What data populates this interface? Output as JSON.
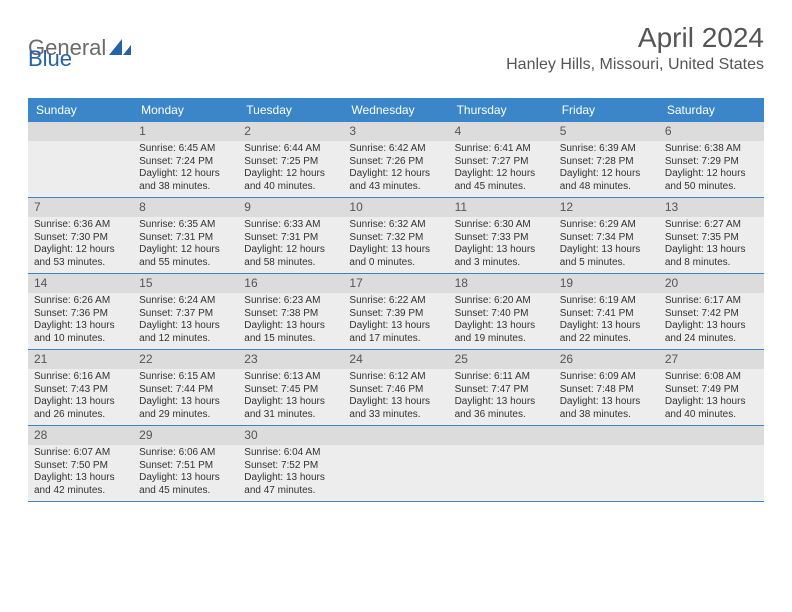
{
  "brand": {
    "part1": "General",
    "part2": "Blue"
  },
  "title": "April 2024",
  "location": "Hanley Hills, Missouri, United States",
  "colors": {
    "header_bg": "#3a86c8",
    "header_text": "#ffffff",
    "row_bg": "#ededed",
    "daynum_bg": "#dcdcdc",
    "border": "#3a86c8",
    "text": "#333333",
    "title_text": "#555555",
    "logo_gray": "#6a6a6a",
    "logo_blue": "#2563a8"
  },
  "day_labels": [
    "Sunday",
    "Monday",
    "Tuesday",
    "Wednesday",
    "Thursday",
    "Friday",
    "Saturday"
  ],
  "weeks": [
    [
      null,
      {
        "n": "1",
        "sr": "6:45 AM",
        "ss": "7:24 PM",
        "dl": "12 hours and 38 minutes."
      },
      {
        "n": "2",
        "sr": "6:44 AM",
        "ss": "7:25 PM",
        "dl": "12 hours and 40 minutes."
      },
      {
        "n": "3",
        "sr": "6:42 AM",
        "ss": "7:26 PM",
        "dl": "12 hours and 43 minutes."
      },
      {
        "n": "4",
        "sr": "6:41 AM",
        "ss": "7:27 PM",
        "dl": "12 hours and 45 minutes."
      },
      {
        "n": "5",
        "sr": "6:39 AM",
        "ss": "7:28 PM",
        "dl": "12 hours and 48 minutes."
      },
      {
        "n": "6",
        "sr": "6:38 AM",
        "ss": "7:29 PM",
        "dl": "12 hours and 50 minutes."
      }
    ],
    [
      {
        "n": "7",
        "sr": "6:36 AM",
        "ss": "7:30 PM",
        "dl": "12 hours and 53 minutes."
      },
      {
        "n": "8",
        "sr": "6:35 AM",
        "ss": "7:31 PM",
        "dl": "12 hours and 55 minutes."
      },
      {
        "n": "9",
        "sr": "6:33 AM",
        "ss": "7:31 PM",
        "dl": "12 hours and 58 minutes."
      },
      {
        "n": "10",
        "sr": "6:32 AM",
        "ss": "7:32 PM",
        "dl": "13 hours and 0 minutes."
      },
      {
        "n": "11",
        "sr": "6:30 AM",
        "ss": "7:33 PM",
        "dl": "13 hours and 3 minutes."
      },
      {
        "n": "12",
        "sr": "6:29 AM",
        "ss": "7:34 PM",
        "dl": "13 hours and 5 minutes."
      },
      {
        "n": "13",
        "sr": "6:27 AM",
        "ss": "7:35 PM",
        "dl": "13 hours and 8 minutes."
      }
    ],
    [
      {
        "n": "14",
        "sr": "6:26 AM",
        "ss": "7:36 PM",
        "dl": "13 hours and 10 minutes."
      },
      {
        "n": "15",
        "sr": "6:24 AM",
        "ss": "7:37 PM",
        "dl": "13 hours and 12 minutes."
      },
      {
        "n": "16",
        "sr": "6:23 AM",
        "ss": "7:38 PM",
        "dl": "13 hours and 15 minutes."
      },
      {
        "n": "17",
        "sr": "6:22 AM",
        "ss": "7:39 PM",
        "dl": "13 hours and 17 minutes."
      },
      {
        "n": "18",
        "sr": "6:20 AM",
        "ss": "7:40 PM",
        "dl": "13 hours and 19 minutes."
      },
      {
        "n": "19",
        "sr": "6:19 AM",
        "ss": "7:41 PM",
        "dl": "13 hours and 22 minutes."
      },
      {
        "n": "20",
        "sr": "6:17 AM",
        "ss": "7:42 PM",
        "dl": "13 hours and 24 minutes."
      }
    ],
    [
      {
        "n": "21",
        "sr": "6:16 AM",
        "ss": "7:43 PM",
        "dl": "13 hours and 26 minutes."
      },
      {
        "n": "22",
        "sr": "6:15 AM",
        "ss": "7:44 PM",
        "dl": "13 hours and 29 minutes."
      },
      {
        "n": "23",
        "sr": "6:13 AM",
        "ss": "7:45 PM",
        "dl": "13 hours and 31 minutes."
      },
      {
        "n": "24",
        "sr": "6:12 AM",
        "ss": "7:46 PM",
        "dl": "13 hours and 33 minutes."
      },
      {
        "n": "25",
        "sr": "6:11 AM",
        "ss": "7:47 PM",
        "dl": "13 hours and 36 minutes."
      },
      {
        "n": "26",
        "sr": "6:09 AM",
        "ss": "7:48 PM",
        "dl": "13 hours and 38 minutes."
      },
      {
        "n": "27",
        "sr": "6:08 AM",
        "ss": "7:49 PM",
        "dl": "13 hours and 40 minutes."
      }
    ],
    [
      {
        "n": "28",
        "sr": "6:07 AM",
        "ss": "7:50 PM",
        "dl": "13 hours and 42 minutes."
      },
      {
        "n": "29",
        "sr": "6:06 AM",
        "ss": "7:51 PM",
        "dl": "13 hours and 45 minutes."
      },
      {
        "n": "30",
        "sr": "6:04 AM",
        "ss": "7:52 PM",
        "dl": "13 hours and 47 minutes."
      },
      null,
      null,
      null,
      null
    ]
  ],
  "labels": {
    "sunrise": "Sunrise: ",
    "sunset": "Sunset: ",
    "daylight": "Daylight: "
  }
}
